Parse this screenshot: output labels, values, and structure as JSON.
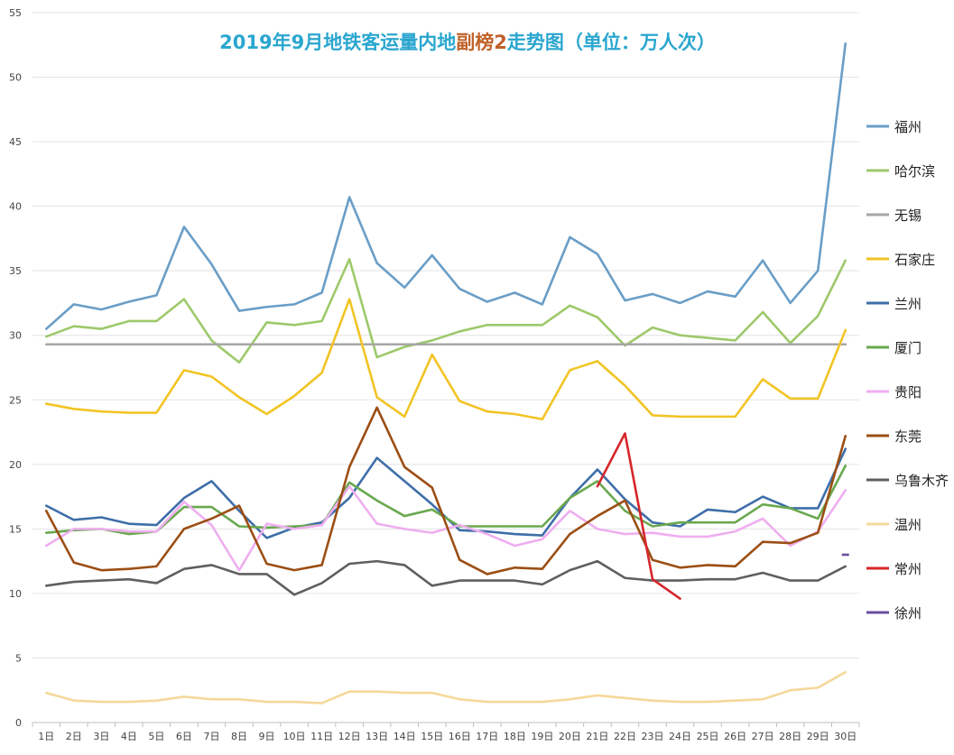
{
  "chart_data": {
    "type": "line",
    "title_parts": [
      {
        "text": "2019年9月地铁客运量内地",
        "color": "#2aa6cf"
      },
      {
        "text": "副榜2",
        "color": "#c0622a"
      },
      {
        "text": "走势图（单位：万人次）",
        "color": "#2aa6cf"
      }
    ],
    "title": "2019年9月地铁客运量内地副榜2走势图（单位：万人次）",
    "xlabel": "",
    "ylabel": "",
    "ylim": [
      0,
      55
    ],
    "y_ticks": [
      0,
      5,
      10,
      15,
      20,
      25,
      30,
      35,
      40,
      45,
      50,
      55
    ],
    "grid": "horizontal",
    "legend_position": "right",
    "x": [
      "1日",
      "2日",
      "3日",
      "4日",
      "5日",
      "6日",
      "7日",
      "8日",
      "9日",
      "10日",
      "11日",
      "12日",
      "13日",
      "14日",
      "15日",
      "16日",
      "17日",
      "18日",
      "19日",
      "20日",
      "21日",
      "22日",
      "23日",
      "24日",
      "25日",
      "26日",
      "27日",
      "28日",
      "29日",
      "30日"
    ],
    "series": [
      {
        "name": "福州",
        "color": "#6a9ec7",
        "values": [
          30.5,
          32.4,
          32.0,
          32.6,
          33.1,
          38.4,
          35.5,
          31.9,
          32.2,
          32.4,
          33.3,
          40.7,
          35.6,
          33.7,
          36.2,
          33.6,
          32.6,
          33.3,
          32.4,
          37.6,
          36.3,
          32.7,
          33.2,
          32.5,
          33.4,
          33.0,
          35.8,
          32.5,
          35.0,
          52.6
        ]
      },
      {
        "name": "哈尔滨",
        "color": "#9dc96a",
        "values": [
          29.9,
          30.7,
          30.5,
          31.1,
          31.1,
          32.8,
          29.6,
          27.9,
          31.0,
          30.8,
          31.1,
          35.9,
          28.3,
          29.1,
          29.6,
          30.3,
          30.8,
          30.8,
          30.8,
          32.3,
          31.4,
          29.2,
          30.6,
          30.0,
          29.8,
          29.6,
          31.8,
          29.4,
          31.5,
          35.8
        ]
      },
      {
        "name": "无锡",
        "color": "#a6a6a6",
        "values": [
          29.3,
          29.3,
          29.3,
          29.3,
          29.3,
          29.3,
          29.3,
          29.3,
          29.3,
          29.3,
          29.3,
          29.3,
          29.3,
          29.3,
          29.3,
          29.3,
          29.3,
          29.3,
          29.3,
          29.3,
          29.3,
          29.3,
          29.3,
          29.3,
          29.3,
          29.3,
          29.3,
          29.3,
          29.3,
          29.3
        ]
      },
      {
        "name": "石家庄",
        "color": "#f2c425",
        "values": [
          24.7,
          24.3,
          24.1,
          24.0,
          24.0,
          27.3,
          26.8,
          25.2,
          23.9,
          25.3,
          27.1,
          32.8,
          25.2,
          23.7,
          28.5,
          24.9,
          24.1,
          23.9,
          23.5,
          27.3,
          28.0,
          26.1,
          23.8,
          23.7,
          23.7,
          23.7,
          26.6,
          25.1,
          25.1,
          30.4
        ]
      },
      {
        "name": "兰州",
        "color": "#3e6ea8",
        "values": [
          16.8,
          15.7,
          15.9,
          15.4,
          15.3,
          17.4,
          18.7,
          16.4,
          14.3,
          15.1,
          15.5,
          17.4,
          20.5,
          18.7,
          16.9,
          14.9,
          14.8,
          14.6,
          14.5,
          17.4,
          19.6,
          17.3,
          15.5,
          15.2,
          16.5,
          16.3,
          17.5,
          16.6,
          16.6,
          21.2
        ]
      },
      {
        "name": "厦门",
        "color": "#6aa84f",
        "values": [
          14.7,
          14.9,
          15.0,
          14.6,
          14.8,
          16.7,
          16.7,
          15.2,
          15.1,
          15.2,
          15.3,
          18.6,
          17.2,
          16.0,
          16.5,
          15.2,
          15.2,
          15.2,
          15.2,
          17.4,
          18.7,
          16.4,
          15.2,
          15.5,
          15.5,
          15.5,
          16.9,
          16.6,
          15.8,
          19.9
        ]
      },
      {
        "name": "贵阳",
        "color": "#efaef0",
        "values": [
          13.7,
          15.0,
          15.0,
          14.8,
          14.8,
          17.1,
          15.3,
          11.8,
          15.4,
          15.0,
          15.3,
          18.3,
          15.4,
          15.0,
          14.7,
          15.3,
          14.6,
          13.7,
          14.2,
          16.4,
          15.0,
          14.6,
          14.7,
          14.4,
          14.4,
          14.8,
          15.8,
          13.7,
          14.8,
          18.0
        ]
      },
      {
        "name": "东莞",
        "color": "#9c4e14",
        "values": [
          16.4,
          12.4,
          11.8,
          11.9,
          12.1,
          15.0,
          15.8,
          16.8,
          12.3,
          11.8,
          12.2,
          19.8,
          24.4,
          19.8,
          18.2,
          12.6,
          11.5,
          12.0,
          11.9,
          14.6,
          16.0,
          17.2,
          12.6,
          12.0,
          12.2,
          12.1,
          14.0,
          13.9,
          14.7,
          22.2
        ]
      },
      {
        "name": "乌鲁木齐",
        "color": "#5f5f5f",
        "values": [
          10.6,
          10.9,
          11.0,
          11.1,
          10.8,
          11.9,
          12.2,
          11.5,
          11.5,
          9.9,
          10.8,
          12.3,
          12.5,
          12.2,
          10.6,
          11.0,
          11.0,
          11.0,
          10.7,
          11.8,
          12.5,
          11.2,
          11.0,
          11.0,
          11.1,
          11.1,
          11.6,
          11.0,
          11.0,
          12.1
        ]
      },
      {
        "name": "温州",
        "color": "#f5d89a",
        "values": [
          2.3,
          1.7,
          1.6,
          1.6,
          1.7,
          2.0,
          1.8,
          1.8,
          1.6,
          1.6,
          1.5,
          2.4,
          2.4,
          2.3,
          2.3,
          1.8,
          1.6,
          1.6,
          1.6,
          1.8,
          2.1,
          1.9,
          1.7,
          1.6,
          1.6,
          1.7,
          1.8,
          2.5,
          2.7,
          3.9
        ]
      },
      {
        "name": "常州",
        "color": "#d6262b",
        "values": [
          null,
          null,
          null,
          null,
          null,
          null,
          null,
          null,
          null,
          null,
          null,
          null,
          null,
          null,
          null,
          null,
          null,
          null,
          null,
          null,
          18.3,
          22.4,
          11.1,
          9.6,
          null,
          null,
          null,
          null,
          null,
          null
        ]
      },
      {
        "name": "徐州",
        "color": "#6a4ea0",
        "values": [
          null,
          null,
          null,
          null,
          null,
          null,
          null,
          null,
          null,
          null,
          null,
          null,
          null,
          null,
          null,
          null,
          null,
          null,
          null,
          null,
          null,
          null,
          null,
          null,
          null,
          null,
          null,
          null,
          null,
          13.0
        ]
      }
    ]
  }
}
